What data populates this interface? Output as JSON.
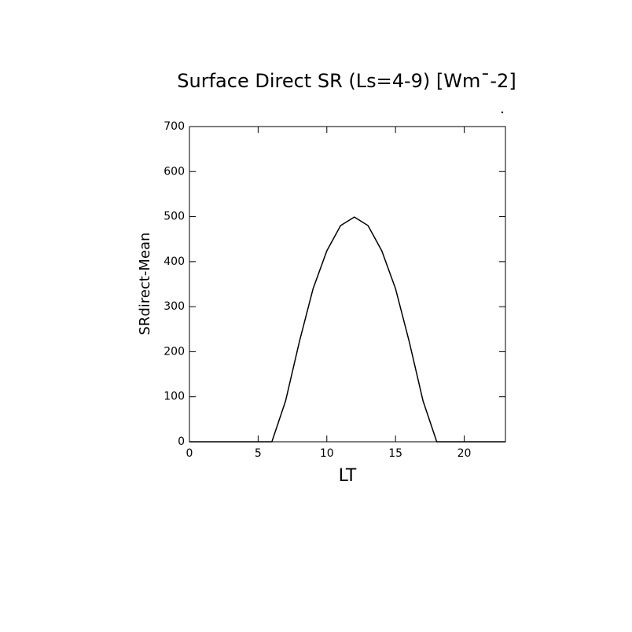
{
  "chart_data": {
    "type": "line",
    "title": "Surface Direct SR (Ls=4-9) [Wm¯-2]",
    "xlabel": "LT",
    "ylabel": "SRdirect-Mean",
    "x": [
      0,
      1,
      2,
      3,
      4,
      5,
      6,
      7,
      8,
      9,
      10,
      11,
      12,
      13,
      14,
      15,
      16,
      17,
      18,
      19,
      20,
      21,
      22,
      23
    ],
    "series": [
      {
        "name": "SRdirect-Mean",
        "color": "#000000",
        "values": [
          0,
          0,
          0,
          0,
          0,
          0,
          0,
          91,
          222,
          340,
          424,
          480,
          499,
          480,
          424,
          340,
          222,
          91,
          0,
          0,
          0,
          0,
          0,
          0
        ]
      }
    ],
    "xlim": [
      0,
      23
    ],
    "xticks": [
      0,
      5,
      10,
      15,
      20
    ],
    "ylim": [
      0,
      700
    ],
    "yticks": [
      0,
      100,
      200,
      300,
      400,
      500,
      600,
      700
    ]
  }
}
